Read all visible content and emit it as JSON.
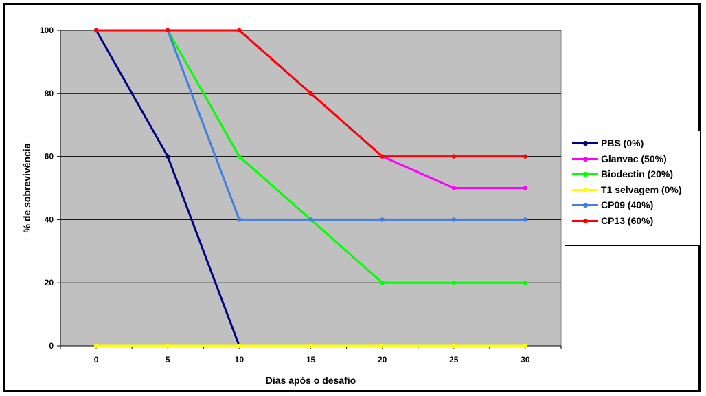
{
  "chart_data": {
    "type": "line",
    "xlabel": "Dias após o desafio",
    "ylabel": "% de sobrevivência",
    "x": [
      0,
      5,
      10,
      15,
      20,
      25,
      30
    ],
    "xticks": [
      "0",
      "5",
      "10",
      "15",
      "20",
      "25",
      "30"
    ],
    "yticks": [
      "0",
      "20",
      "40",
      "60",
      "80",
      "100"
    ],
    "xlim": [
      -2.5,
      32.5
    ],
    "ylim": [
      0,
      100
    ],
    "grid": "horizontal",
    "plot_background": "#c0c0c0",
    "legend_position": "right",
    "series": [
      {
        "name": "PBS (0%)",
        "color": "#000080",
        "points": [
          [
            0,
            100
          ],
          [
            5,
            60
          ],
          [
            10,
            0
          ]
        ]
      },
      {
        "name": "Glanvac (50%)",
        "color": "#ff00ff",
        "points": [
          [
            0,
            100
          ],
          [
            5,
            100
          ],
          [
            10,
            100
          ],
          [
            15,
            80
          ],
          [
            20,
            60
          ],
          [
            25,
            50
          ],
          [
            30,
            50
          ]
        ]
      },
      {
        "name": "Biodectin (20%)",
        "color": "#00ff00",
        "points": [
          [
            0,
            100
          ],
          [
            5,
            100
          ],
          [
            10,
            60
          ],
          [
            15,
            40
          ],
          [
            20,
            20
          ],
          [
            25,
            20
          ],
          [
            30,
            20
          ]
        ]
      },
      {
        "name": "T1 selvagem (0%)",
        "color": "#ffff00",
        "points": [
          [
            0,
            0
          ],
          [
            5,
            0
          ],
          [
            10,
            0
          ],
          [
            15,
            0
          ],
          [
            20,
            0
          ],
          [
            25,
            0
          ],
          [
            30,
            0
          ]
        ]
      },
      {
        "name": "CP09 (40%)",
        "color": "#3f7fe0",
        "points": [
          [
            0,
            100
          ],
          [
            5,
            100
          ],
          [
            10,
            40
          ],
          [
            15,
            40
          ],
          [
            20,
            40
          ],
          [
            25,
            40
          ],
          [
            30,
            40
          ]
        ]
      },
      {
        "name": "CP13 (60%)",
        "color": "#ff0000",
        "points": [
          [
            0,
            100
          ],
          [
            5,
            100
          ],
          [
            10,
            100
          ],
          [
            15,
            80
          ],
          [
            20,
            60
          ],
          [
            25,
            60
          ],
          [
            30,
            60
          ]
        ]
      }
    ]
  }
}
